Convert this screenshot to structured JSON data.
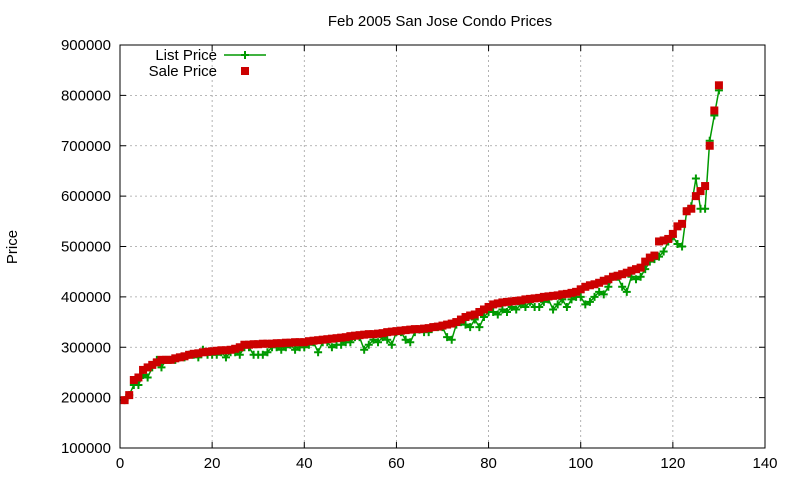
{
  "chart_data": {
    "type": "line",
    "title": "Feb 2005 San Jose Condo Prices",
    "xlabel": "",
    "ylabel": "Price",
    "xlim": [
      0,
      140
    ],
    "ylim": [
      100000,
      900000
    ],
    "xticks": [
      0,
      20,
      40,
      60,
      80,
      100,
      120,
      140
    ],
    "yticks": [
      100000,
      200000,
      300000,
      400000,
      500000,
      600000,
      700000,
      800000,
      900000
    ],
    "xtick_labels": [
      "0",
      "20",
      "40",
      "60",
      "80",
      "100",
      "120",
      "140"
    ],
    "ytick_labels": [
      "100000",
      "200000",
      "300000",
      "400000",
      "500000",
      "600000",
      "700000",
      "800000",
      "900000"
    ],
    "grid": true,
    "legend_position": "top-left",
    "series": [
      {
        "name": "List Price",
        "style": "line+cross",
        "color": "#009900",
        "x": [
          1,
          2,
          3,
          4,
          5,
          6,
          7,
          8,
          9,
          10,
          11,
          12,
          13,
          14,
          15,
          16,
          17,
          18,
          19,
          20,
          21,
          22,
          23,
          24,
          25,
          26,
          27,
          28,
          29,
          30,
          31,
          32,
          33,
          34,
          35,
          36,
          37,
          38,
          39,
          40,
          41,
          42,
          43,
          44,
          45,
          46,
          47,
          48,
          49,
          50,
          51,
          52,
          53,
          54,
          55,
          56,
          57,
          58,
          59,
          60,
          61,
          62,
          63,
          64,
          65,
          66,
          67,
          68,
          69,
          70,
          71,
          72,
          73,
          74,
          75,
          76,
          77,
          78,
          79,
          80,
          81,
          82,
          83,
          84,
          85,
          86,
          87,
          88,
          89,
          90,
          91,
          92,
          93,
          94,
          95,
          96,
          97,
          98,
          99,
          100,
          101,
          102,
          103,
          104,
          105,
          106,
          107,
          108,
          109,
          110,
          111,
          112,
          113,
          114,
          115,
          116,
          117,
          118,
          119,
          120,
          121,
          122,
          123,
          124,
          125,
          126,
          127,
          128,
          129,
          130
        ],
        "values": [
          195000,
          205000,
          225000,
          225000,
          245000,
          240000,
          260000,
          275000,
          260000,
          275000,
          275000,
          275000,
          280000,
          280000,
          285000,
          285000,
          280000,
          295000,
          285000,
          285000,
          285000,
          290000,
          280000,
          290000,
          290000,
          285000,
          300000,
          300000,
          285000,
          285000,
          285000,
          290000,
          300000,
          300000,
          295000,
          300000,
          305000,
          295000,
          300000,
          300000,
          305000,
          310000,
          290000,
          310000,
          310000,
          300000,
          305000,
          305000,
          310000,
          310000,
          320000,
          320000,
          295000,
          305000,
          315000,
          310000,
          320000,
          315000,
          305000,
          330000,
          330000,
          315000,
          310000,
          330000,
          335000,
          330000,
          330000,
          340000,
          340000,
          340000,
          320000,
          315000,
          345000,
          350000,
          345000,
          340000,
          355000,
          340000,
          360000,
          370000,
          370000,
          365000,
          375000,
          370000,
          380000,
          375000,
          385000,
          380000,
          390000,
          380000,
          380000,
          390000,
          395000,
          375000,
          385000,
          395000,
          380000,
          395000,
          400000,
          400000,
          385000,
          390000,
          400000,
          410000,
          405000,
          420000,
          440000,
          440000,
          420000,
          410000,
          440000,
          435000,
          440000,
          455000,
          470000,
          475000,
          480000,
          490000,
          510000,
          520000,
          505000,
          500000,
          570000,
          580000,
          635000,
          575000,
          575000,
          710000,
          760000,
          810000
        ]
      },
      {
        "name": "Sale Price",
        "style": "square",
        "color": "#cc0000",
        "x": [
          1,
          2,
          3,
          4,
          5,
          6,
          7,
          8,
          9,
          10,
          11,
          12,
          13,
          14,
          15,
          16,
          17,
          18,
          19,
          20,
          21,
          22,
          23,
          24,
          25,
          26,
          27,
          28,
          29,
          30,
          31,
          32,
          33,
          34,
          35,
          36,
          37,
          38,
          39,
          40,
          41,
          42,
          43,
          44,
          45,
          46,
          47,
          48,
          49,
          50,
          51,
          52,
          53,
          54,
          55,
          56,
          57,
          58,
          59,
          60,
          61,
          62,
          63,
          64,
          65,
          66,
          67,
          68,
          69,
          70,
          71,
          72,
          73,
          74,
          75,
          76,
          77,
          78,
          79,
          80,
          81,
          82,
          83,
          84,
          85,
          86,
          87,
          88,
          89,
          90,
          91,
          92,
          93,
          94,
          95,
          96,
          97,
          98,
          99,
          100,
          101,
          102,
          103,
          104,
          105,
          106,
          107,
          108,
          109,
          110,
          111,
          112,
          113,
          114,
          115,
          116,
          117,
          118,
          119,
          120,
          121,
          122,
          123,
          124,
          125,
          126,
          127,
          128,
          129,
          130
        ],
        "values": [
          195000,
          205000,
          235000,
          240000,
          255000,
          260000,
          265000,
          270000,
          275000,
          275000,
          275000,
          278000,
          280000,
          282000,
          285000,
          287000,
          288000,
          290000,
          291000,
          292000,
          293000,
          294000,
          294000,
          295000,
          297000,
          300000,
          305000,
          305000,
          306000,
          306000,
          307000,
          307000,
          307000,
          308000,
          308000,
          309000,
          309000,
          310000,
          310000,
          310000,
          312000,
          313000,
          314000,
          315000,
          316000,
          317000,
          318000,
          319000,
          320000,
          322000,
          323000,
          324000,
          325000,
          326000,
          326000,
          327000,
          328000,
          330000,
          331000,
          332000,
          333000,
          334000,
          335000,
          336000,
          336000,
          337000,
          338000,
          340000,
          341000,
          343000,
          345000,
          347000,
          350000,
          355000,
          360000,
          363000,
          365000,
          370000,
          375000,
          380000,
          385000,
          387000,
          389000,
          390000,
          391000,
          392000,
          393000,
          395000,
          396000,
          397000,
          398000,
          400000,
          401000,
          402000,
          403000,
          405000,
          406000,
          408000,
          410000,
          415000,
          420000,
          423000,
          425000,
          428000,
          432000,
          435000,
          440000,
          442000,
          445000,
          448000,
          452000,
          455000,
          458000,
          470000,
          478000,
          482000,
          510000,
          512000,
          515000,
          525000,
          540000,
          545000,
          570000,
          575000,
          600000,
          610000,
          620000,
          700000,
          770000,
          820000
        ]
      }
    ]
  }
}
